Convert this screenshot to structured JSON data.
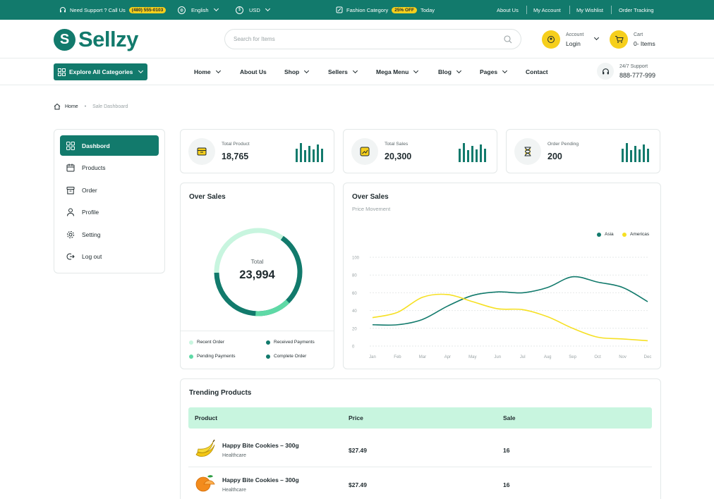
{
  "topbar": {
    "support_text": "Need Support ? Call Us",
    "phone": "(480) 555-0103",
    "language": "English",
    "currency": "USD",
    "fashion_label": "Fashion Category",
    "discount": "25% OFF",
    "today": "Today",
    "links": [
      "About Us",
      "My Account",
      "My Wishlist",
      "Order Tracking"
    ]
  },
  "header": {
    "logo": "Sellzy",
    "search_placeholder": "Search for Items",
    "account_label": "Account",
    "account_value": "Login",
    "cart_label": "Cart",
    "cart_value": "0- Items"
  },
  "nav": {
    "explore": "Explore All Categories",
    "links": [
      "Home",
      "About Us",
      "Shop",
      "Sellers",
      "Mega Menu",
      "Blog",
      "Pages",
      "Contact"
    ],
    "support_label": "24/7 Support",
    "support_phone": "888-777-999"
  },
  "breadcrumb": {
    "home": "Home",
    "current": "Sale Dashboard"
  },
  "sidebar": {
    "items": [
      {
        "label": "Dashbord",
        "icon": "grid-icon"
      },
      {
        "label": "Products",
        "icon": "calendar-icon"
      },
      {
        "label": "Order",
        "icon": "box-icon"
      },
      {
        "label": "Profile",
        "icon": "user-icon"
      },
      {
        "label": "Setting",
        "icon": "gear-icon"
      },
      {
        "label": "Log out",
        "icon": "logout-icon"
      }
    ]
  },
  "stats": [
    {
      "label": "Total Product",
      "value": "18,765",
      "icon": "box-icon"
    },
    {
      "label": "Total Sales",
      "value": "20,300",
      "icon": "chart-icon"
    },
    {
      "label": "Order Pending",
      "value": "200",
      "icon": "hourglass-icon"
    }
  ],
  "donut": {
    "title": "Over Sales",
    "center_label": "Total",
    "center_value": "23,994",
    "legend": [
      {
        "label": "Recent Order",
        "color": "#c8f5df"
      },
      {
        "label": "Received Payments",
        "color": "#127a6c"
      },
      {
        "label": "Pending Payments",
        "color": "#5fd9a6"
      },
      {
        "label": "Complete Order",
        "color": "#127a6c"
      }
    ]
  },
  "colors": {
    "primary": "#127a6c",
    "accent": "#f6cf1c",
    "mint": "#c8f5df"
  },
  "chart_data": {
    "type": "line",
    "title": "Over Sales",
    "subtitle": "Price Movement",
    "categories": [
      "Jan",
      "Feb",
      "Mar",
      "Apr",
      "May",
      "Jun",
      "Jul",
      "Aug",
      "Sep",
      "Oct",
      "Nov",
      "Dec"
    ],
    "ylim": [
      0,
      100
    ],
    "yticks": [
      0,
      20,
      40,
      60,
      80,
      100
    ],
    "grid": true,
    "legend_position": "top-right",
    "series": [
      {
        "name": "Asia",
        "color": "#127a6c",
        "values": [
          24,
          24,
          30,
          45,
          57,
          61,
          60,
          66,
          78,
          72,
          66,
          50
        ]
      },
      {
        "name": "Americas",
        "color": "#f6e023",
        "values": [
          32,
          38,
          55,
          58,
          50,
          42,
          41,
          33,
          20,
          10,
          8,
          6
        ]
      }
    ]
  },
  "trending": {
    "title": "Trending Products",
    "columns": [
      "Product",
      "Price",
      "Sale"
    ],
    "rows": [
      {
        "name": "Happy Bite Cookies – 300g",
        "category": "Healthcare",
        "price": "$27.49",
        "sale": "16",
        "image": "banana-icon"
      },
      {
        "name": "Happy Bite Cookies – 300g",
        "category": "Healthcare",
        "price": "$27.49",
        "sale": "16",
        "image": "orange-icon"
      }
    ]
  }
}
